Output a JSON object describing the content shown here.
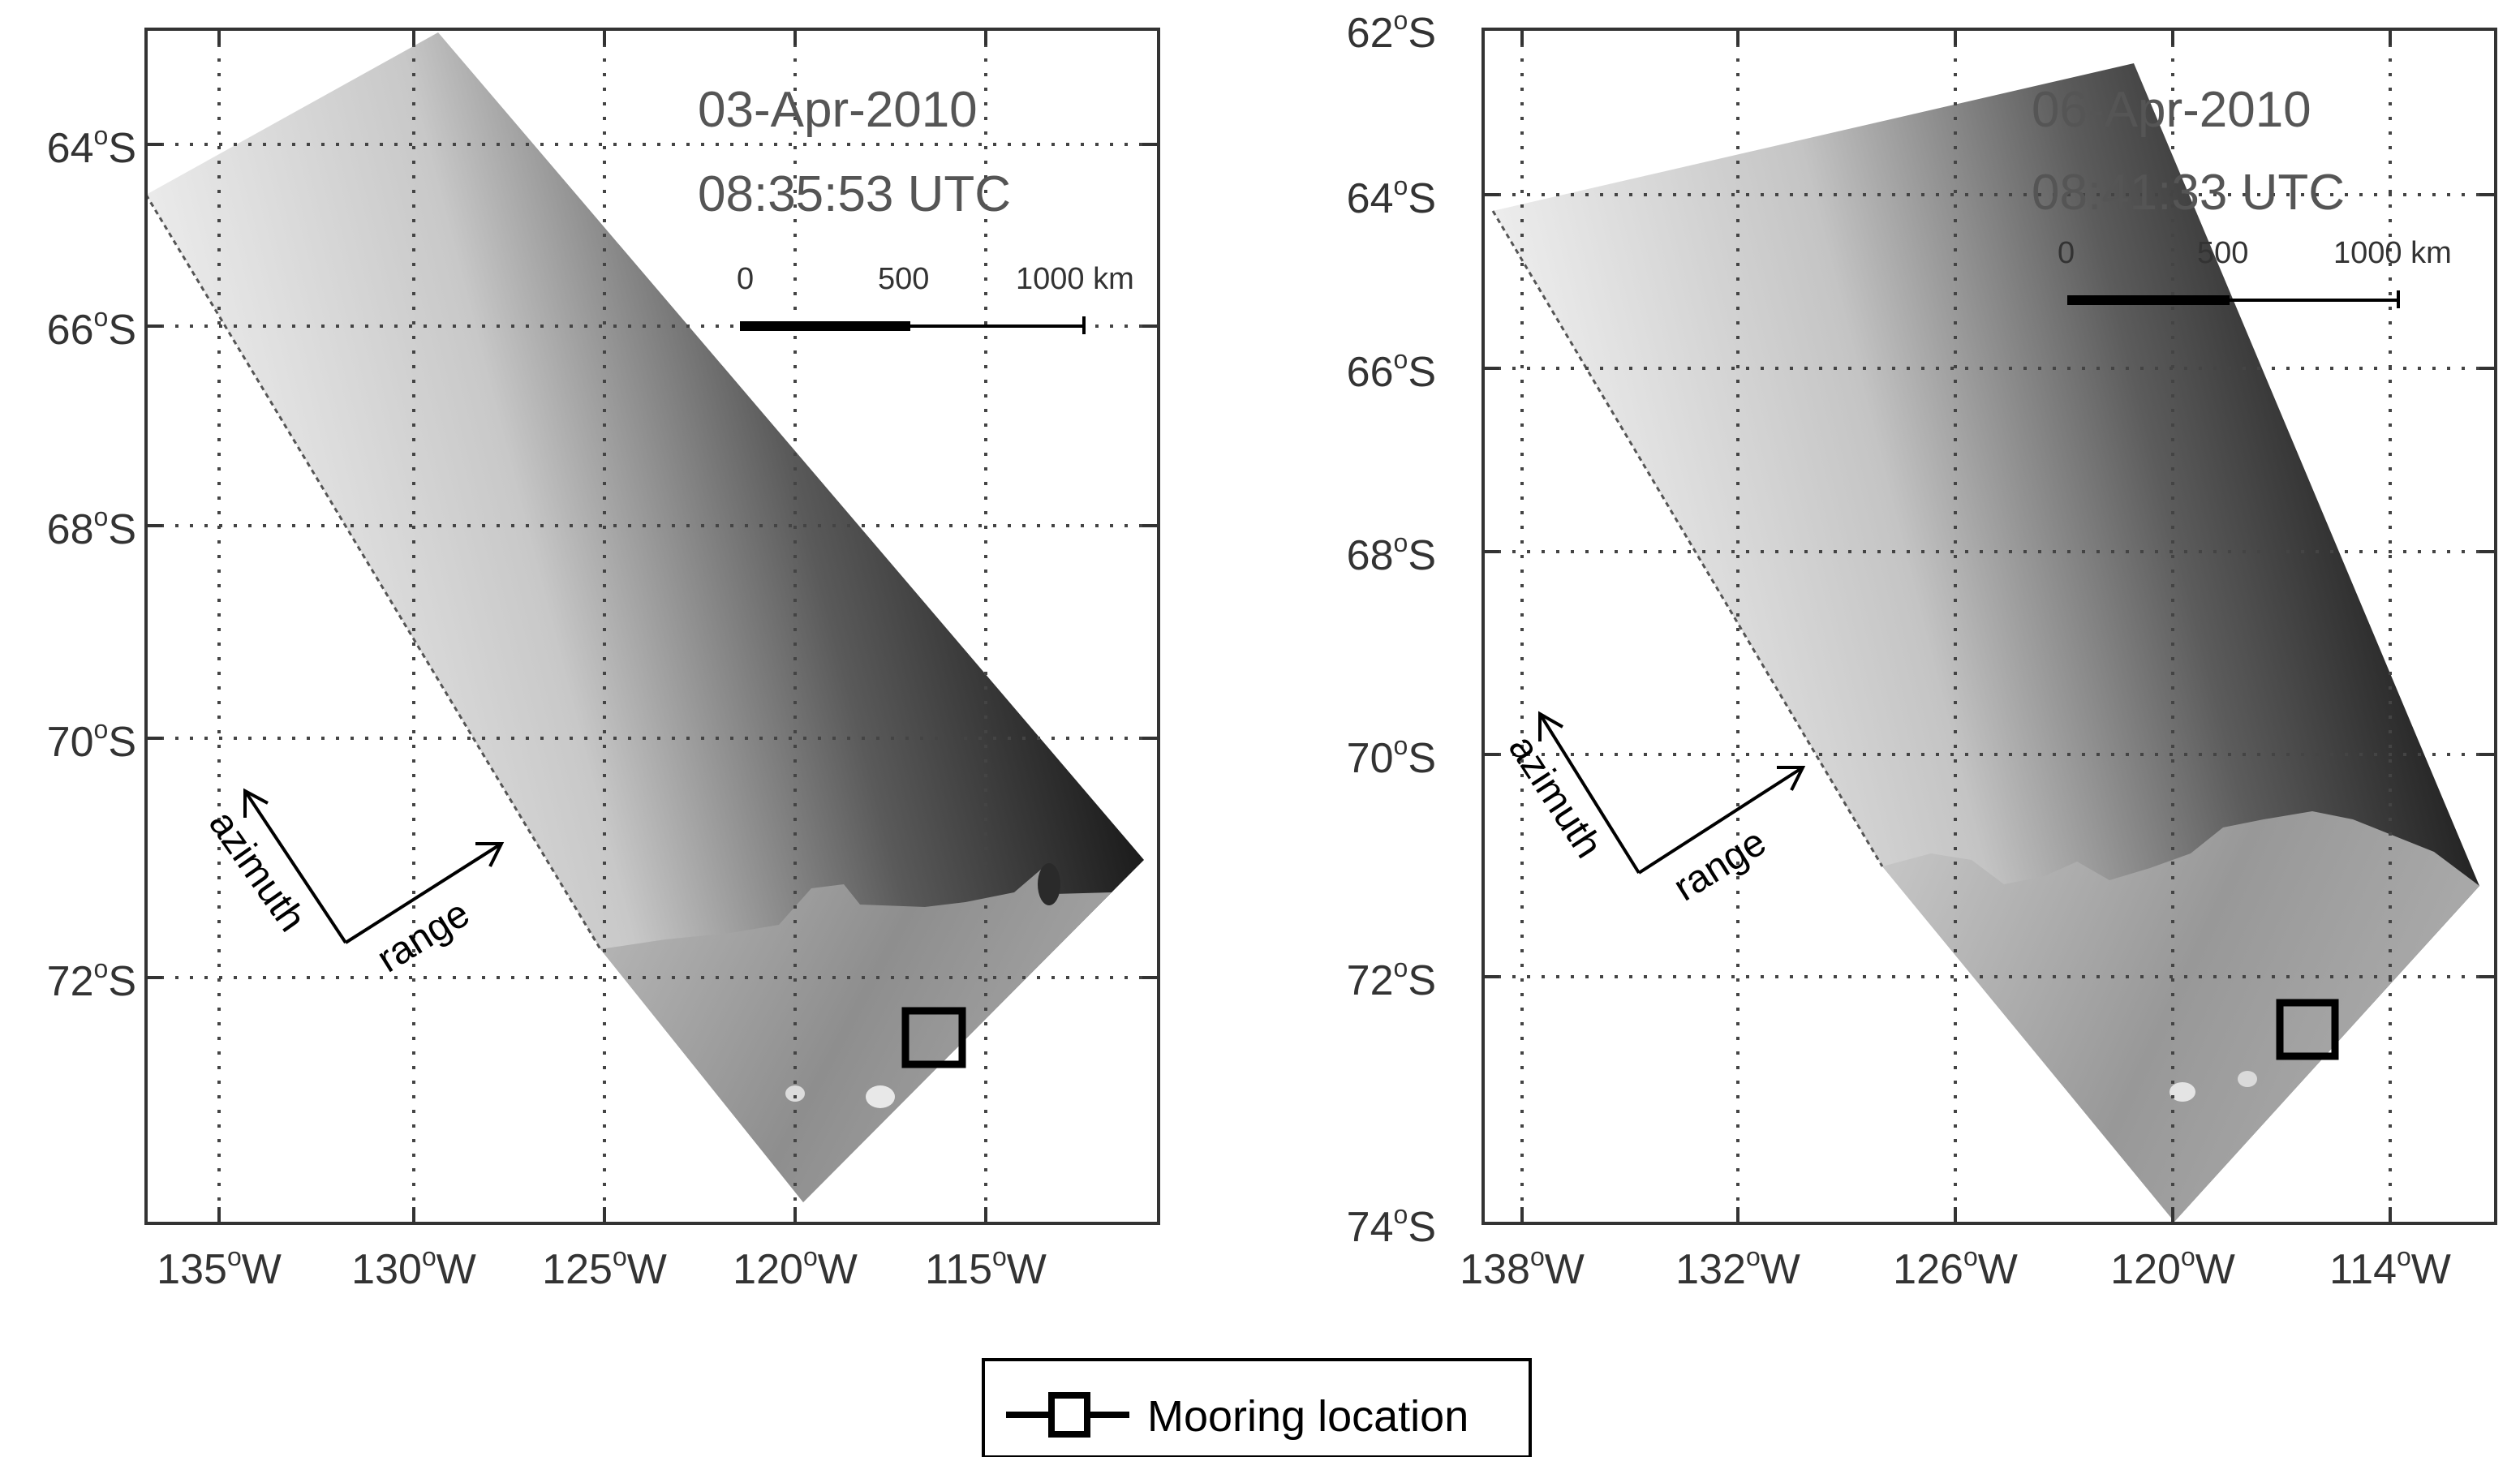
{
  "panels": [
    {
      "id": "left",
      "date": "03-Apr-2010",
      "time": "08:35:53 UTC",
      "scale_bar": {
        "labels": [
          "0",
          "500",
          "1000 km"
        ]
      },
      "lat_labels": [
        {
          "deg": "64",
          "hemi": "S"
        },
        {
          "deg": "66",
          "hemi": "S"
        },
        {
          "deg": "68",
          "hemi": "S"
        },
        {
          "deg": "70",
          "hemi": "S"
        },
        {
          "deg": "72",
          "hemi": "S"
        }
      ],
      "lon_labels": [
        {
          "deg": "135",
          "hemi": "W"
        },
        {
          "deg": "130",
          "hemi": "W"
        },
        {
          "deg": "125",
          "hemi": "W"
        },
        {
          "deg": "120",
          "hemi": "W"
        },
        {
          "deg": "115",
          "hemi": "W"
        }
      ],
      "azimuth_label": "azimuth",
      "range_label": "range"
    },
    {
      "id": "right",
      "date": "06-Apr-2010",
      "time": "08:41:33 UTC",
      "scale_bar": {
        "labels": [
          "0",
          "500",
          "1000 km"
        ]
      },
      "lat_labels": [
        {
          "deg": "62",
          "hemi": "S"
        },
        {
          "deg": "64",
          "hemi": "S"
        },
        {
          "deg": "66",
          "hemi": "S"
        },
        {
          "deg": "68",
          "hemi": "S"
        },
        {
          "deg": "70",
          "hemi": "S"
        },
        {
          "deg": "72",
          "hemi": "S"
        },
        {
          "deg": "74",
          "hemi": "S"
        }
      ],
      "lon_labels": [
        {
          "deg": "138",
          "hemi": "W"
        },
        {
          "deg": "132",
          "hemi": "W"
        },
        {
          "deg": "126",
          "hemi": "W"
        },
        {
          "deg": "120",
          "hemi": "W"
        },
        {
          "deg": "114",
          "hemi": "W"
        }
      ],
      "azimuth_label": "azimuth",
      "range_label": "range"
    }
  ],
  "legend": {
    "label": "Mooring location"
  },
  "colors": {
    "frame": "#333333",
    "sar_dark": "#1a1a1a",
    "sar_light": "#f2f2f2",
    "ice": "#9a9a9a",
    "marker": "#000000"
  }
}
